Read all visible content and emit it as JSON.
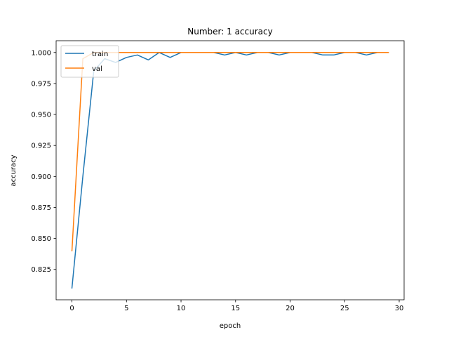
{
  "chart_data": {
    "type": "line",
    "title": "Number: 1 accuracy",
    "xlabel": "epoch",
    "ylabel": "accuracy",
    "xlim": [
      -1.45,
      30.45
    ],
    "ylim": [
      0.8005,
      1.0095
    ],
    "xticks": [
      0,
      5,
      10,
      15,
      20,
      25,
      30
    ],
    "yticks": [
      0.825,
      0.85,
      0.875,
      0.9,
      0.925,
      0.95,
      0.975,
      1.0
    ],
    "ytick_labels": [
      "0.825",
      "0.850",
      "0.875",
      "0.900",
      "0.925",
      "0.950",
      "0.975",
      "1.000"
    ],
    "legend_position": "top-left",
    "series": [
      {
        "name": "train",
        "color": "#1f77b4",
        "x": [
          0,
          1,
          2,
          3,
          4,
          5,
          6,
          7,
          8,
          9,
          10,
          11,
          12,
          13,
          14,
          15,
          16,
          17,
          18,
          19,
          20,
          21,
          22,
          23,
          24,
          25,
          26,
          27,
          28,
          29
        ],
        "y": [
          0.81,
          0.9,
          0.985,
          0.995,
          0.992,
          0.996,
          0.998,
          0.994,
          1.0,
          0.996,
          1.0,
          1.0,
          1.0,
          1.0,
          0.998,
          1.0,
          0.998,
          1.0,
          1.0,
          0.998,
          1.0,
          1.0,
          1.0,
          0.998,
          0.998,
          1.0,
          1.0,
          0.998,
          1.0,
          1.0
        ]
      },
      {
        "name": "val",
        "color": "#ff7f0e",
        "x": [
          0,
          1,
          2,
          3,
          4,
          5,
          6,
          7,
          8,
          9,
          10,
          11,
          12,
          13,
          14,
          15,
          16,
          17,
          18,
          19,
          20,
          21,
          22,
          23,
          24,
          25,
          26,
          27,
          28,
          29
        ],
        "y": [
          0.84,
          0.995,
          1.0,
          1.0,
          1.0,
          1.0,
          1.0,
          1.0,
          1.0,
          1.0,
          1.0,
          1.0,
          1.0,
          1.0,
          1.0,
          1.0,
          1.0,
          1.0,
          1.0,
          1.0,
          1.0,
          1.0,
          1.0,
          1.0,
          1.0,
          1.0,
          1.0,
          1.0,
          1.0,
          1.0
        ]
      }
    ]
  }
}
